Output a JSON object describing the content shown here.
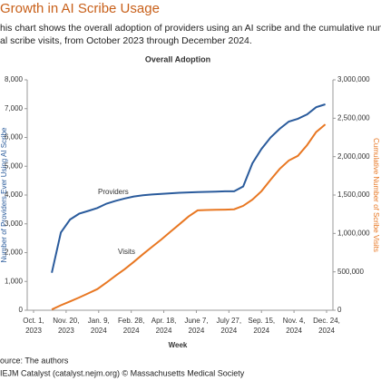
{
  "chart_data": {
    "type": "line",
    "header_title": "Growth in AI Scribe Usage",
    "subtitle": [
      "his chart shows the overall adoption of providers using an AI scribe and the cumulative number o",
      "al scribe visits, from October 2023 through December 2024."
    ],
    "title": "Overall Adoption",
    "xlabel": "Week",
    "ylabel": "Number of Providers Ever Using AI Scribe",
    "y2label": "Cumulative Number of Scribe Visits",
    "source": [
      "ource: The authors",
      "IEJM Catalyst (catalyst.nejm.org) © Massachusetts Medical Society"
    ],
    "x": [
      "2023-10-29",
      "2023-11-12",
      "2023-11-26",
      "2023-12-10",
      "2023-12-24",
      "2024-01-07",
      "2024-01-21",
      "2024-02-04",
      "2024-02-18",
      "2024-03-03",
      "2024-03-17",
      "2024-03-31",
      "2024-04-14",
      "2024-04-28",
      "2024-05-12",
      "2024-05-26",
      "2024-06-09",
      "2024-06-23",
      "2024-07-07",
      "2024-07-21",
      "2024-08-04",
      "2024-08-18",
      "2024-09-01",
      "2024-09-15",
      "2024-09-29",
      "2024-10-13",
      "2024-10-27",
      "2024-11-10",
      "2024-11-24",
      "2024-12-08",
      "2024-12-22"
    ],
    "series": [
      {
        "name": "Providers",
        "color": "#2a5b9c",
        "values": [
          1300,
          2700,
          3150,
          3350,
          3450,
          3550,
          3700,
          3800,
          3880,
          3950,
          3990,
          4020,
          4040,
          4060,
          4080,
          4090,
          4100,
          4110,
          4120,
          4130,
          4130,
          4300,
          5100,
          5600,
          6000,
          6300,
          6550,
          6650,
          6800,
          7050,
          7150
        ]
      },
      {
        "name": "Visits",
        "color": "#e87722",
        "axis": "y2",
        "values": [
          10000,
          65000,
          115000,
          165000,
          220000,
          275000,
          360000,
          450000,
          535000,
          630000,
          730000,
          825000,
          920000,
          1020000,
          1120000,
          1220000,
          1300000,
          1305000,
          1308000,
          1310000,
          1315000,
          1360000,
          1440000,
          1550000,
          1700000,
          1840000,
          1950000,
          2010000,
          2150000,
          2320000,
          2420000
        ]
      }
    ],
    "xlim": [
      "2023-10-01",
      "2024-12-24"
    ],
    "xticks": [
      {
        "value": "2023-10-01",
        "label": "Oct. 1, 2023"
      },
      {
        "value": "2023-11-20",
        "label": "Nov. 20, 2023"
      },
      {
        "value": "2024-01-09",
        "label": "Jan. 9, 2024"
      },
      {
        "value": "2024-02-28",
        "label": "Feb. 28, 2024"
      },
      {
        "value": "2024-04-18",
        "label": "Apr. 18, 2024"
      },
      {
        "value": "2024-06-07",
        "label": "June 7, 2024"
      },
      {
        "value": "2024-07-27",
        "label": "July 27, 2024"
      },
      {
        "value": "2024-09-15",
        "label": "Sep. 15, 2024"
      },
      {
        "value": "2024-11-04",
        "label": "Nov. 4, 2024"
      },
      {
        "value": "2024-12-24",
        "label": "Dec. 24, 2024"
      }
    ],
    "ylim": [
      0,
      8000
    ],
    "yticks": [
      0,
      {
        "value": 1000,
        "label": "1,000"
      },
      {
        "value": 2000,
        "label": "2,000"
      },
      {
        "value": 3000,
        "label": "3,000"
      },
      {
        "value": 4000,
        "label": "4,000"
      },
      {
        "value": 5000,
        "label": "5,000"
      },
      {
        "value": 6000,
        "label": "6,000"
      },
      {
        "value": 7000,
        "label": "7,000"
      },
      {
        "value": 8000,
        "label": "8,000"
      }
    ],
    "y2lim": [
      0,
      3000000
    ],
    "y2ticks": [
      0,
      {
        "value": 500000,
        "label": "500,000"
      },
      {
        "value": 1000000,
        "label": "1,000,000"
      },
      {
        "value": 1500000,
        "label": "1,500,000"
      },
      {
        "value": 2000000,
        "label": "2,000,000"
      },
      {
        "value": 2500000,
        "label": "2,500,000"
      },
      {
        "value": 3000000,
        "label": "3,000,000"
      }
    ],
    "grid": false
  }
}
